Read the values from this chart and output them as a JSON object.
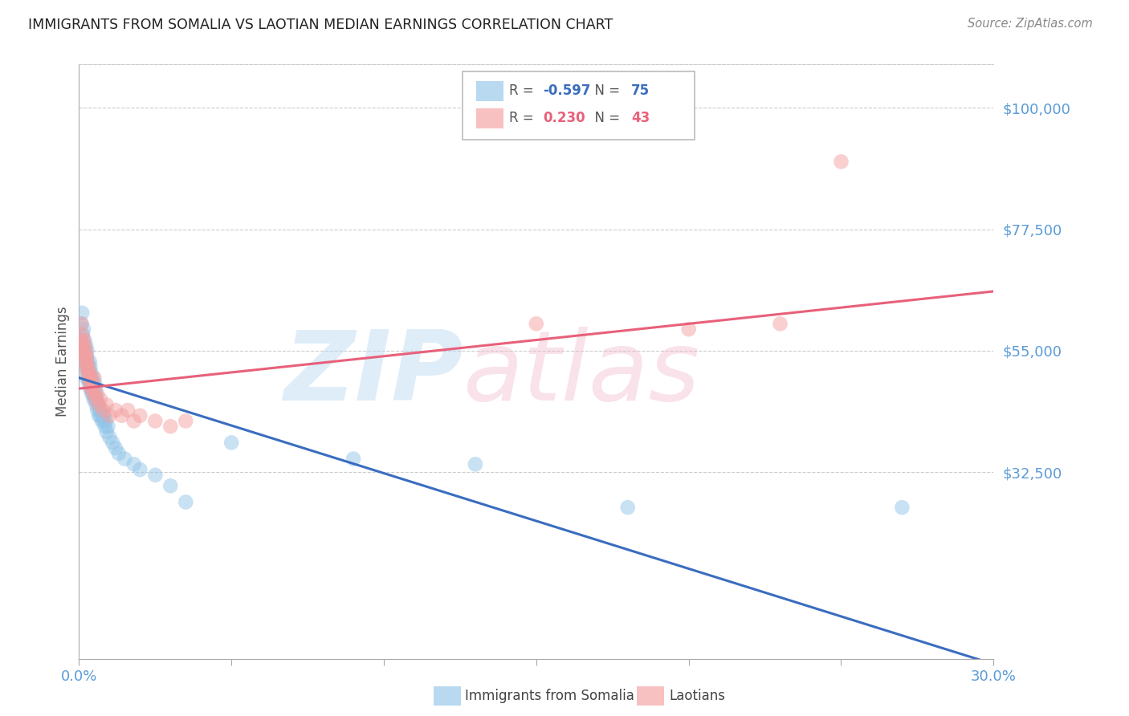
{
  "title": "IMMIGRANTS FROM SOMALIA VS LAOTIAN MEDIAN EARNINGS CORRELATION CHART",
  "source": "Source: ZipAtlas.com",
  "ylabel": "Median Earnings",
  "yticks": [
    0,
    32500,
    55000,
    77500,
    100000
  ],
  "ytick_labels": [
    "",
    "$32,500",
    "$55,000",
    "$77,500",
    "$100,000"
  ],
  "xlim": [
    0.0,
    0.3
  ],
  "ylim": [
    -2000,
    108000
  ],
  "somalia_R": -0.597,
  "somalia_N": 75,
  "laotian_R": 0.23,
  "laotian_N": 43,
  "somalia_color": "#92c5e8",
  "laotian_color": "#f4a0a0",
  "somalia_line_color": "#3a6dbf",
  "laotian_line_color": "#e8607a",
  "background_color": "#ffffff",
  "axis_label_color": "#5b9bd5",
  "watermark_zip": "ZIP",
  "watermark_atlas": "atlas",
  "legend_label_somalia": "Immigrants from Somalia",
  "legend_label_laotian": "Laotians",
  "somalia_x": [
    0.0005,
    0.0008,
    0.001,
    0.0012,
    0.0013,
    0.0015,
    0.0015,
    0.0017,
    0.0018,
    0.002,
    0.002,
    0.0022,
    0.0023,
    0.0024,
    0.0025,
    0.0026,
    0.0027,
    0.0028,
    0.0028,
    0.003,
    0.003,
    0.0032,
    0.0033,
    0.0034,
    0.0035,
    0.0036,
    0.0037,
    0.0038,
    0.0039,
    0.004,
    0.004,
    0.0042,
    0.0043,
    0.0044,
    0.0045,
    0.0046,
    0.0047,
    0.0048,
    0.005,
    0.0051,
    0.0052,
    0.0053,
    0.0054,
    0.0055,
    0.0056,
    0.0058,
    0.006,
    0.0062,
    0.0065,
    0.0068,
    0.007,
    0.0072,
    0.0075,
    0.0078,
    0.008,
    0.0082,
    0.0085,
    0.0088,
    0.009,
    0.0095,
    0.01,
    0.011,
    0.012,
    0.013,
    0.015,
    0.018,
    0.02,
    0.025,
    0.03,
    0.035,
    0.05,
    0.09,
    0.13,
    0.18,
    0.27
  ],
  "somalia_y": [
    57000,
    60000,
    62000,
    58000,
    55000,
    56000,
    59000,
    54000,
    57000,
    55000,
    52000,
    53000,
    56000,
    50000,
    54000,
    52000,
    55000,
    51000,
    53000,
    50000,
    52000,
    49000,
    51000,
    50000,
    53000,
    48000,
    52000,
    49000,
    51000,
    48000,
    50000,
    47000,
    49000,
    48000,
    50000,
    47000,
    49000,
    46000,
    48000,
    47000,
    49000,
    46000,
    48000,
    47000,
    45000,
    46000,
    44000,
    45000,
    43000,
    44000,
    43000,
    44000,
    42000,
    43000,
    42000,
    43000,
    41000,
    42000,
    40000,
    41000,
    39000,
    38000,
    37000,
    36000,
    35000,
    34000,
    33000,
    32000,
    30000,
    27000,
    38000,
    35000,
    34000,
    26000,
    26000
  ],
  "laotian_x": [
    0.0005,
    0.0008,
    0.001,
    0.0012,
    0.0014,
    0.0015,
    0.0017,
    0.0018,
    0.002,
    0.0022,
    0.0024,
    0.0025,
    0.0027,
    0.0028,
    0.003,
    0.0032,
    0.0034,
    0.0036,
    0.0038,
    0.004,
    0.0042,
    0.0045,
    0.0048,
    0.005,
    0.0055,
    0.006,
    0.0065,
    0.007,
    0.008,
    0.009,
    0.01,
    0.012,
    0.014,
    0.016,
    0.018,
    0.02,
    0.025,
    0.03,
    0.035,
    0.15,
    0.2,
    0.23,
    0.25
  ],
  "laotian_y": [
    57000,
    60000,
    58000,
    56000,
    55000,
    57000,
    54000,
    56000,
    53000,
    55000,
    52000,
    54000,
    53000,
    51000,
    52000,
    50000,
    51000,
    49000,
    50000,
    48000,
    49000,
    48000,
    47000,
    50000,
    46000,
    47000,
    45000,
    46000,
    44000,
    45000,
    43000,
    44000,
    43000,
    44000,
    42000,
    43000,
    42000,
    41000,
    42000,
    60000,
    59000,
    60000,
    90000
  ],
  "somalia_line_y0": 50000,
  "somalia_line_y1": -3000,
  "laotian_line_y0": 48000,
  "laotian_line_y1": 66000
}
